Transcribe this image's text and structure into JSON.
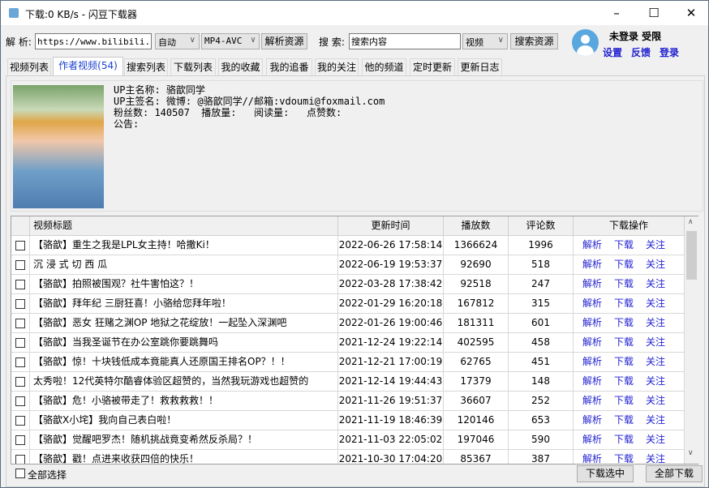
{
  "window": {
    "title": "下载:0 KB/s - 闪豆下载器",
    "minimize": "–",
    "maximize": "☐",
    "close": "✕"
  },
  "toolbar": {
    "parse_label": "解 析:",
    "url_value": "https://www.bilibili.com",
    "quality_select": "自动",
    "format_select": "MP4-AVC",
    "parse_button": "解析资源",
    "search_label": "搜 索:",
    "search_value": "搜索内容",
    "search_type_select": "视频",
    "search_button": "搜索资源"
  },
  "user": {
    "status": "未登录 受限",
    "settings": "设置",
    "feedback": "反馈",
    "login": "登录"
  },
  "tabs": [
    {
      "label": "视频列表"
    },
    {
      "label": "作者视频(54)",
      "active": true
    },
    {
      "label": "搜索列表"
    },
    {
      "label": "下载列表"
    },
    {
      "label": "我的收藏"
    },
    {
      "label": "我的追番"
    },
    {
      "label": "我的关注"
    },
    {
      "label": "他的频道"
    },
    {
      "label": "定时更新"
    },
    {
      "label": "更新日志"
    }
  ],
  "uploader": {
    "name_line": "UP主名称: 骆歆同学",
    "sign_line": "UP主签名: 微博: @骆歆同学//邮箱:vdoumi@foxmail.com",
    "stats_line": "粉丝数: 140507  播放量:   阅读量:   点赞数:",
    "notice_line": "公告:"
  },
  "table": {
    "headers": [
      "视频标题",
      "更新时间",
      "播放数",
      "评论数",
      "下载操作"
    ],
    "actions": [
      "解析",
      "下载",
      "关注"
    ],
    "rows": [
      [
        "【骆歆】重生之我是LPL女主持！哈撒Ki！",
        "2022-06-26 17:58:14",
        "1366624",
        "1996"
      ],
      [
        "沉 浸 式 切 西 瓜",
        "2022-06-19 19:53:37",
        "92690",
        "518"
      ],
      [
        "【骆歆】拍照被围观？社牛害怕这？！",
        "2022-03-28 17:38:42",
        "92518",
        "247"
      ],
      [
        "【骆歆】拜年纪 三厨狂喜！小骆给您拜年啦！",
        "2022-01-29 16:20:18",
        "167812",
        "315"
      ],
      [
        "【骆歆】恶女 狂赌之渊OP 地狱之花绽放！一起坠入深渊吧",
        "2022-01-26 19:00:46",
        "181311",
        "601"
      ],
      [
        "【骆歆】当我圣诞节在办公室跳你要跳舞吗",
        "2021-12-24 19:22:14",
        "402595",
        "458"
      ],
      [
        "【骆歆】惊！十块钱低成本竟能真人还原国王排名OP？！！",
        "2021-12-21 17:00:19",
        "62765",
        "451"
      ],
      [
        "太秀啦！12代英特尔酷睿体验区超赞的，当然我玩游戏也超赞的",
        "2021-12-14 19:44:43",
        "17379",
        "148"
      ],
      [
        "【骆歆】危！小骆被带走了！救救救救！！",
        "2021-11-26 19:51:37",
        "36607",
        "252"
      ],
      [
        "【骆歆X小垞】我向自己表白啦！",
        "2021-11-19 18:46:39",
        "120146",
        "653"
      ],
      [
        "【骆歆】觉醒吧罗杰！随机挑战竟变希然反杀局？！",
        "2021-11-03 22:05:02",
        "197046",
        "590"
      ],
      [
        "【骆歆】戳！点进来收获四倍的快乐！",
        "2021-10-30 17:04:20",
        "85367",
        "387"
      ]
    ]
  },
  "footer": {
    "select_all": "全部选择",
    "download_selected": "下载选中",
    "download_all": "全部下载"
  },
  "colors": {
    "link": "#1f1fd1",
    "active_tab": "#1a3fd0",
    "avatar": "#5aa7e0"
  }
}
